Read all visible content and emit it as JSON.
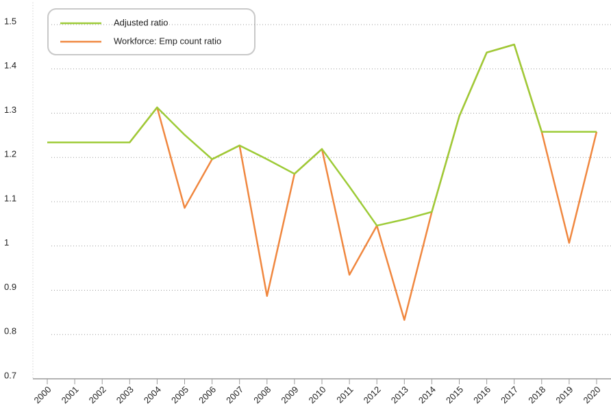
{
  "chart_data": {
    "type": "line",
    "categories": [
      "2000",
      "2001",
      "2002",
      "2003",
      "2004",
      "2005",
      "2006",
      "2007",
      "2008",
      "2009",
      "2010",
      "2011",
      "2012",
      "2013",
      "2014",
      "2015",
      "2016",
      "2017",
      "2018",
      "2019",
      "2020"
    ],
    "series": [
      {
        "name": "Workforce: Emp count ratio",
        "color": "#f0873f",
        "values": [
          1.234,
          1.234,
          1.234,
          1.234,
          1.313,
          1.086,
          1.196,
          1.227,
          0.887,
          1.163,
          1.219,
          0.935,
          1.046,
          0.833,
          1.077,
          1.293,
          1.437,
          1.455,
          1.258,
          1.007,
          1.258
        ]
      },
      {
        "name": "Adjusted ratio",
        "color": "#9dcb37",
        "values": [
          1.234,
          1.234,
          1.234,
          1.234,
          1.313,
          1.251,
          1.196,
          1.227,
          1.196,
          1.163,
          1.219,
          1.134,
          1.046,
          1.06,
          1.077,
          1.293,
          1.437,
          1.455,
          1.258,
          1.258,
          1.258
        ]
      }
    ],
    "ylim": [
      0.7,
      1.55
    ],
    "yticks": [
      0.7,
      0.8,
      0.9,
      1.0,
      1.1,
      1.2,
      1.3,
      1.4,
      1.5
    ],
    "grid": true,
    "legend": "top-left"
  }
}
